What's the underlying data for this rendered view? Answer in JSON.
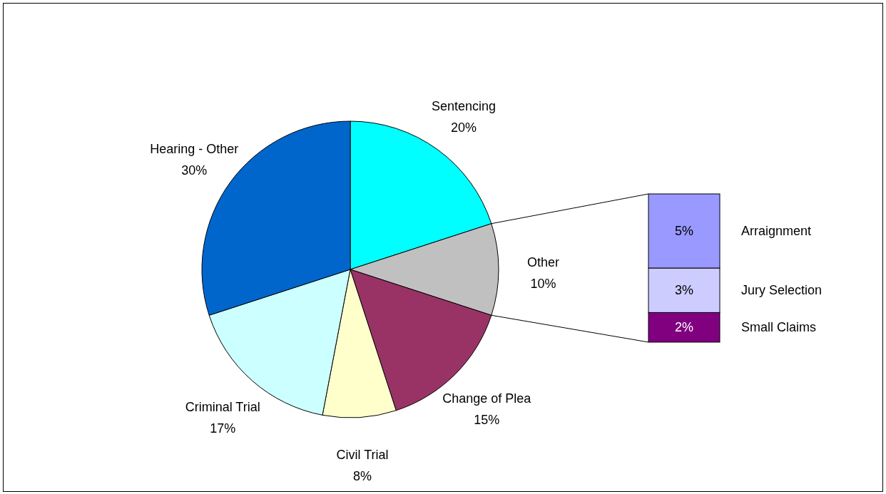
{
  "chart_data": [
    {
      "type": "pie",
      "categories": [
        "Sentencing",
        "Other",
        "Change of Plea",
        "Civil Trial",
        "Criminal Trial",
        "Hearing - Other"
      ],
      "values": [
        20,
        10,
        15,
        8,
        17,
        30
      ],
      "colors": [
        "#00ffff",
        "#c0c0c0",
        "#993366",
        "#ffffcc",
        "#ccffff",
        "#0066cc"
      ],
      "value_labels": [
        "20%",
        "10%",
        "15%",
        "8%",
        "17%",
        "30%"
      ]
    },
    {
      "type": "bar",
      "stacked": true,
      "categories": [
        null
      ],
      "series": [
        {
          "name": "Small Claims",
          "color": "#800080",
          "values": [
            2
          ],
          "value_labels": [
            "2%"
          ]
        },
        {
          "name": "Jury Selection",
          "color": "#ccccff",
          "values": [
            3
          ],
          "value_labels": [
            "3%"
          ]
        },
        {
          "name": "Arraignment",
          "color": "#9999ff",
          "values": [
            5
          ],
          "value_labels": [
            "5%"
          ]
        }
      ]
    }
  ]
}
